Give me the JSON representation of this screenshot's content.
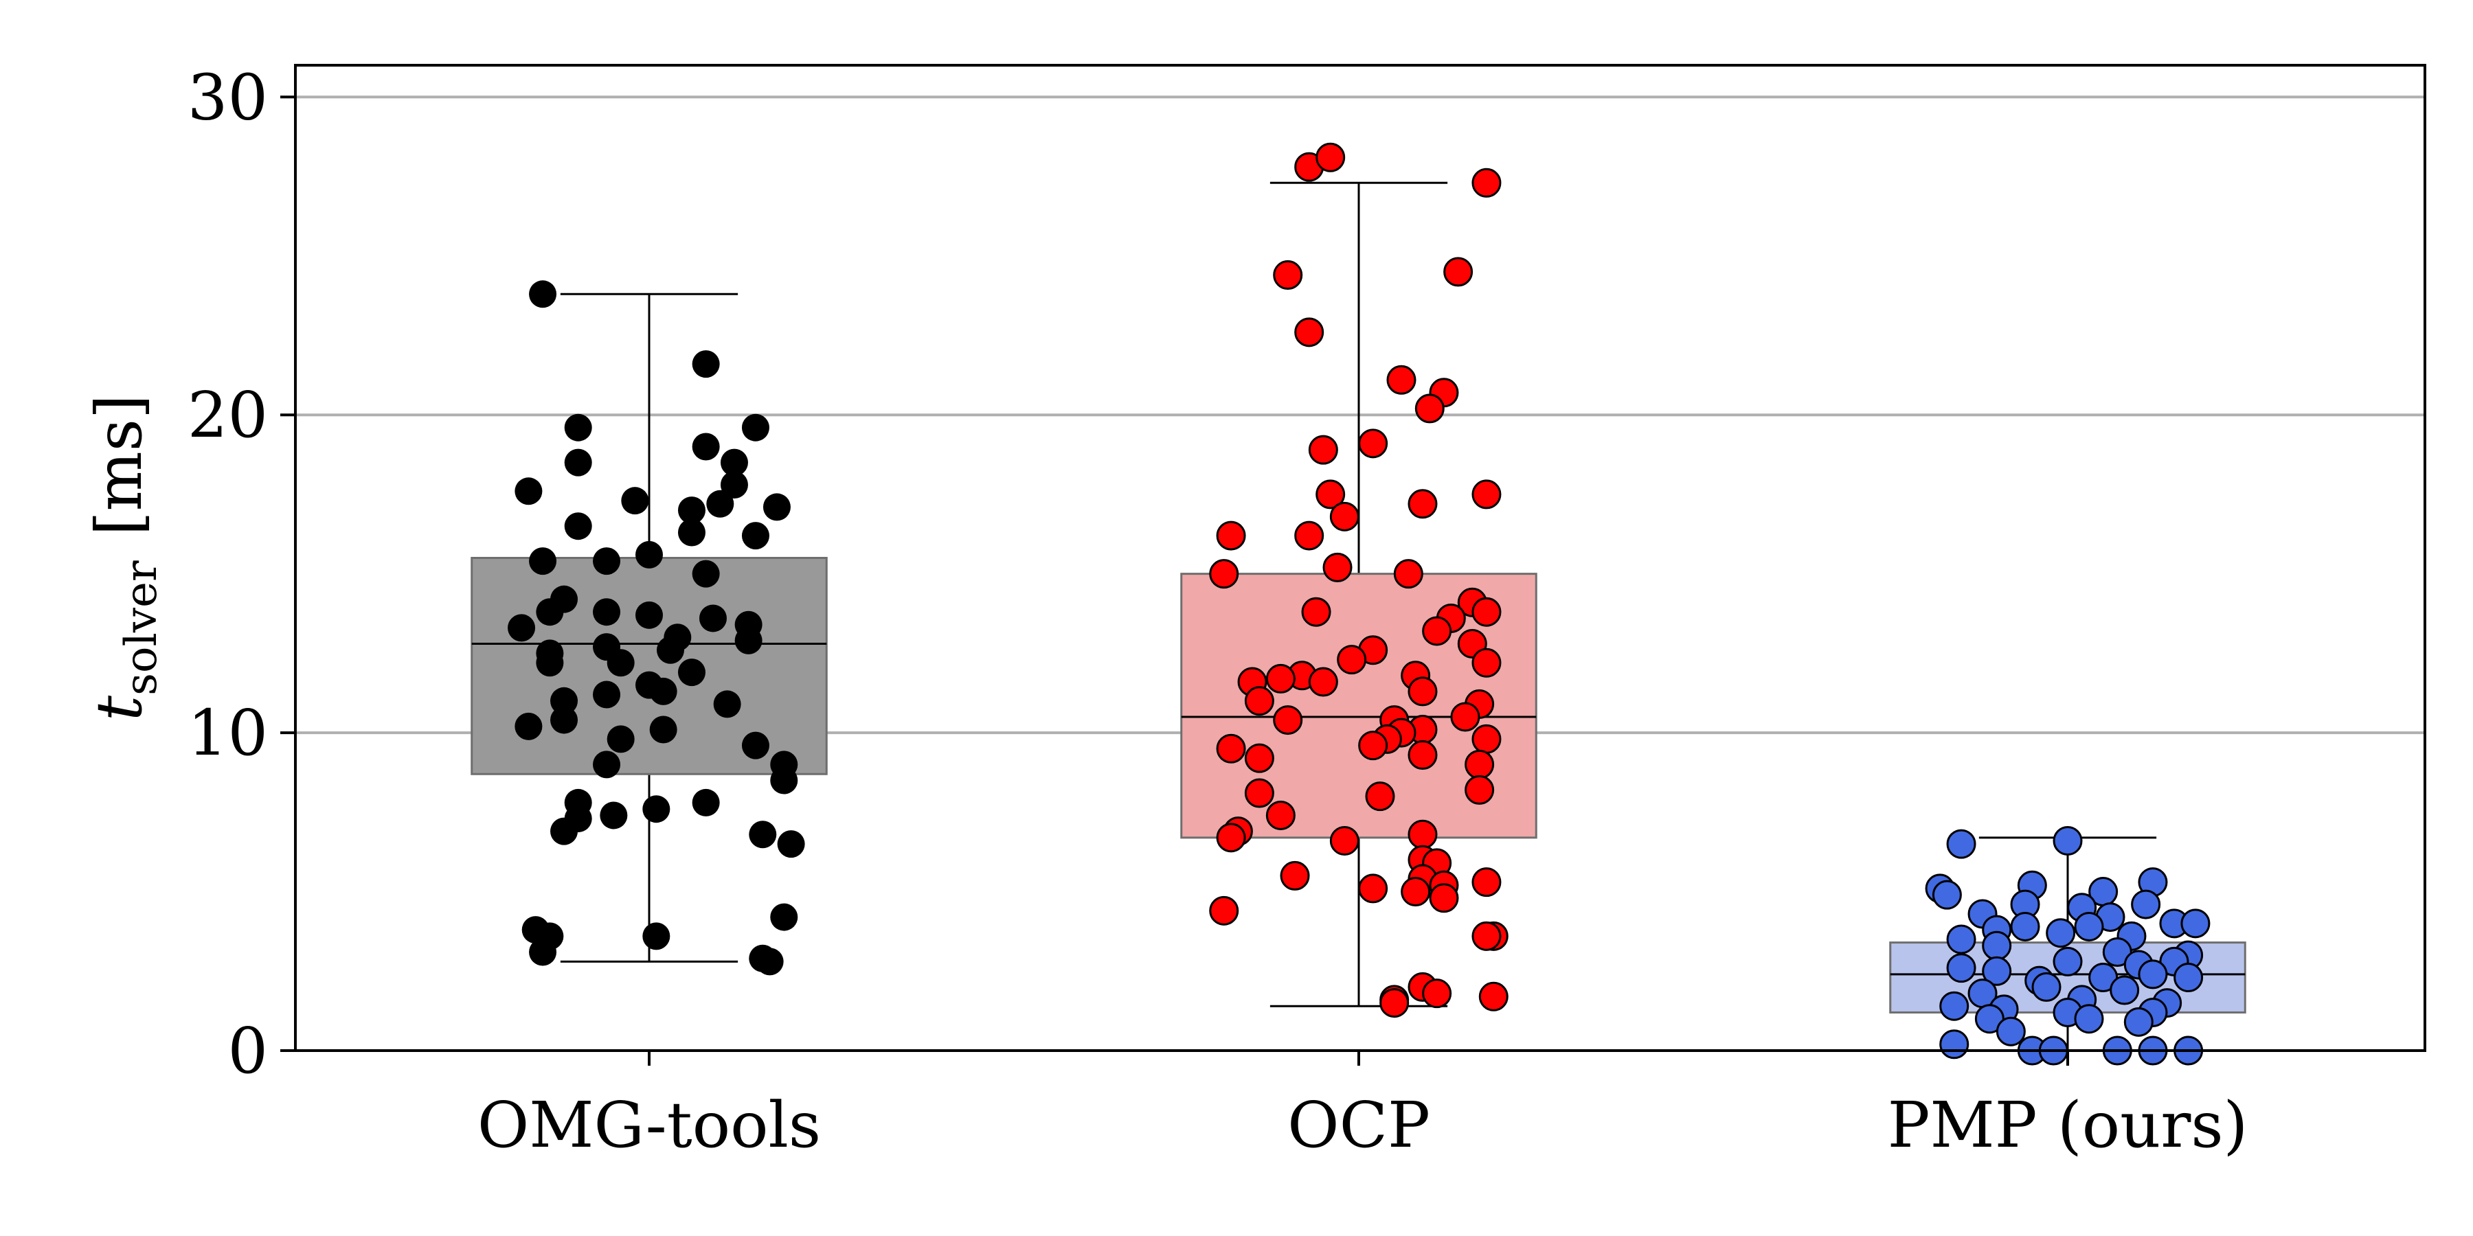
{
  "chart_data": {
    "type": "box",
    "categories": [
      "OMG-tools",
      "OCP",
      "PMP (ours)"
    ],
    "ylabel": {
      "main": "t",
      "subscript": "solver",
      "unit": "[ms]"
    },
    "ylim": [
      0,
      31
    ],
    "yticks": [
      "0",
      "10",
      "20",
      "30"
    ],
    "ytick_values": [
      0,
      10,
      20,
      30
    ],
    "grid": "horizontal",
    "series": [
      {
        "name": "OMG-tools",
        "color": "#000000",
        "box_fill": "#999999",
        "box": {
          "whisker_low": 2.8,
          "q1": 8.7,
          "median": 12.8,
          "q3": 15.5,
          "whisker_high": 23.8
        },
        "points": [
          [
            -0.15,
            23.8
          ],
          [
            0.08,
            21.6
          ],
          [
            -0.1,
            19.6
          ],
          [
            0.15,
            19.6
          ],
          [
            0.08,
            19.0
          ],
          [
            0.12,
            18.5
          ],
          [
            -0.1,
            18.5
          ],
          [
            0.12,
            17.8
          ],
          [
            -0.17,
            17.6
          ],
          [
            -0.02,
            17.3
          ],
          [
            0.1,
            17.2
          ],
          [
            0.18,
            17.1
          ],
          [
            0.06,
            17.0
          ],
          [
            -0.1,
            16.5
          ],
          [
            0.06,
            16.3
          ],
          [
            0.15,
            16.2
          ],
          [
            -0.15,
            15.4
          ],
          [
            0.0,
            15.6
          ],
          [
            -0.06,
            15.4
          ],
          [
            0.08,
            15.0
          ],
          [
            -0.12,
            14.2
          ],
          [
            -0.06,
            13.8
          ],
          [
            -0.14,
            13.8
          ],
          [
            0.0,
            13.7
          ],
          [
            -0.18,
            13.3
          ],
          [
            0.14,
            13.4
          ],
          [
            0.09,
            13.6
          ],
          [
            0.04,
            13.0
          ],
          [
            -0.14,
            12.5
          ],
          [
            -0.06,
            12.7
          ],
          [
            0.03,
            12.6
          ],
          [
            0.14,
            12.9
          ],
          [
            -0.14,
            12.2
          ],
          [
            -0.04,
            12.2
          ],
          [
            0.06,
            11.9
          ],
          [
            0.0,
            11.5
          ],
          [
            -0.12,
            11.0
          ],
          [
            -0.06,
            11.2
          ],
          [
            0.02,
            11.3
          ],
          [
            0.11,
            10.9
          ],
          [
            -0.17,
            10.2
          ],
          [
            -0.12,
            10.4
          ],
          [
            0.02,
            10.1
          ],
          [
            0.15,
            9.6
          ],
          [
            -0.04,
            9.8
          ],
          [
            -0.06,
            9.0
          ],
          [
            0.19,
            9.0
          ],
          [
            0.19,
            8.5
          ],
          [
            0.08,
            7.8
          ],
          [
            -0.1,
            7.8
          ],
          [
            0.01,
            7.6
          ],
          [
            -0.1,
            7.3
          ],
          [
            -0.05,
            7.4
          ],
          [
            -0.12,
            6.9
          ],
          [
            0.16,
            6.8
          ],
          [
            0.2,
            6.5
          ],
          [
            0.19,
            4.2
          ],
          [
            -0.14,
            3.6
          ],
          [
            -0.16,
            3.8
          ],
          [
            0.01,
            3.6
          ],
          [
            -0.15,
            3.1
          ],
          [
            0.16,
            2.9
          ],
          [
            0.17,
            2.8
          ]
        ]
      },
      {
        "name": "OCP",
        "color": "#ff0000",
        "box_fill": "#f0a8a8",
        "box": {
          "whisker_low": 1.4,
          "q1": 6.7,
          "median": 10.5,
          "q3": 15.0,
          "whisker_high": 27.3
        },
        "points": [
          [
            -0.07,
            27.8
          ],
          [
            -0.04,
            28.1
          ],
          [
            0.18,
            27.3
          ],
          [
            0.14,
            24.5
          ],
          [
            -0.1,
            24.4
          ],
          [
            -0.07,
            22.6
          ],
          [
            0.06,
            21.1
          ],
          [
            0.12,
            20.7
          ],
          [
            0.1,
            20.2
          ],
          [
            0.02,
            19.1
          ],
          [
            -0.05,
            18.9
          ],
          [
            0.18,
            17.5
          ],
          [
            -0.04,
            17.5
          ],
          [
            0.09,
            17.2
          ],
          [
            -0.02,
            16.8
          ],
          [
            -0.18,
            16.2
          ],
          [
            -0.07,
            16.2
          ],
          [
            -0.03,
            15.2
          ],
          [
            -0.19,
            15.0
          ],
          [
            0.07,
            15.0
          ],
          [
            0.16,
            14.1
          ],
          [
            0.13,
            13.6
          ],
          [
            0.18,
            13.8
          ],
          [
            -0.06,
            13.8
          ],
          [
            0.11,
            13.2
          ],
          [
            0.16,
            12.8
          ],
          [
            0.18,
            12.2
          ],
          [
            0.02,
            12.6
          ],
          [
            -0.01,
            12.3
          ],
          [
            -0.08,
            11.8
          ],
          [
            -0.11,
            11.7
          ],
          [
            -0.15,
            11.6
          ],
          [
            -0.05,
            11.6
          ],
          [
            0.08,
            11.8
          ],
          [
            0.09,
            11.3
          ],
          [
            -0.14,
            11.0
          ],
          [
            0.17,
            10.9
          ],
          [
            -0.1,
            10.4
          ],
          [
            0.05,
            10.4
          ],
          [
            0.09,
            10.1
          ],
          [
            0.15,
            10.5
          ],
          [
            0.06,
            10.0
          ],
          [
            0.04,
            9.8
          ],
          [
            0.18,
            9.8
          ],
          [
            -0.18,
            9.5
          ],
          [
            0.02,
            9.6
          ],
          [
            -0.14,
            9.2
          ],
          [
            0.09,
            9.3
          ],
          [
            0.17,
            9.0
          ],
          [
            -0.14,
            8.1
          ],
          [
            0.17,
            8.2
          ],
          [
            0.03,
            8.0
          ],
          [
            -0.11,
            7.4
          ],
          [
            -0.17,
            6.9
          ],
          [
            -0.18,
            6.7
          ],
          [
            -0.02,
            6.6
          ],
          [
            0.09,
            6.8
          ],
          [
            0.09,
            6.0
          ],
          [
            0.11,
            5.9
          ],
          [
            0.09,
            5.4
          ],
          [
            0.18,
            5.3
          ],
          [
            0.02,
            5.1
          ],
          [
            0.12,
            5.2
          ],
          [
            0.08,
            5.0
          ],
          [
            0.12,
            4.8
          ],
          [
            -0.19,
            4.4
          ],
          [
            -0.09,
            5.5
          ],
          [
            0.19,
            3.6
          ],
          [
            0.18,
            3.6
          ],
          [
            0.09,
            2.0
          ],
          [
            0.11,
            1.8
          ],
          [
            0.19,
            1.7
          ],
          [
            0.05,
            1.6
          ],
          [
            0.05,
            1.5
          ]
        ]
      },
      {
        "name": "PMP (ours)",
        "color": "#4169e1",
        "box_fill": "#b8c4ec",
        "box": {
          "whisker_low": 0.0,
          "q1": 1.2,
          "median": 2.4,
          "q3": 3.4,
          "whisker_high": 6.7
        },
        "points": [
          [
            -0.15,
            6.5
          ],
          [
            0.0,
            6.6
          ],
          [
            -0.18,
            5.1
          ],
          [
            -0.17,
            4.9
          ],
          [
            0.05,
            5.0
          ],
          [
            -0.05,
            5.2
          ],
          [
            0.12,
            5.3
          ],
          [
            -0.06,
            4.6
          ],
          [
            0.11,
            4.6
          ],
          [
            0.02,
            4.5
          ],
          [
            -0.12,
            4.3
          ],
          [
            0.06,
            4.2
          ],
          [
            0.15,
            4.0
          ],
          [
            0.18,
            4.0
          ],
          [
            -0.1,
            3.8
          ],
          [
            -0.06,
            3.9
          ],
          [
            0.03,
            3.9
          ],
          [
            -0.15,
            3.5
          ],
          [
            -0.01,
            3.7
          ],
          [
            0.09,
            3.6
          ],
          [
            -0.1,
            3.3
          ],
          [
            0.07,
            3.1
          ],
          [
            0.17,
            3.0
          ],
          [
            -0.15,
            2.6
          ],
          [
            0.0,
            2.8
          ],
          [
            0.1,
            2.7
          ],
          [
            0.15,
            2.8
          ],
          [
            -0.1,
            2.5
          ],
          [
            0.05,
            2.3
          ],
          [
            -0.04,
            2.2
          ],
          [
            0.17,
            2.3
          ],
          [
            0.12,
            2.4
          ],
          [
            -0.03,
            2.0
          ],
          [
            0.08,
            1.9
          ],
          [
            -0.12,
            1.8
          ],
          [
            0.02,
            1.6
          ],
          [
            0.14,
            1.5
          ],
          [
            -0.16,
            1.4
          ],
          [
            -0.09,
            1.3
          ],
          [
            0.0,
            1.2
          ],
          [
            0.12,
            1.2
          ],
          [
            -0.11,
            1.0
          ],
          [
            0.03,
            1.0
          ],
          [
            0.1,
            0.9
          ],
          [
            -0.08,
            0.6
          ],
          [
            -0.16,
            0.2
          ],
          [
            -0.05,
            0.0
          ],
          [
            -0.02,
            0.0
          ],
          [
            0.07,
            0.0
          ],
          [
            0.12,
            0.0
          ],
          [
            0.17,
            0.0
          ]
        ]
      }
    ]
  }
}
